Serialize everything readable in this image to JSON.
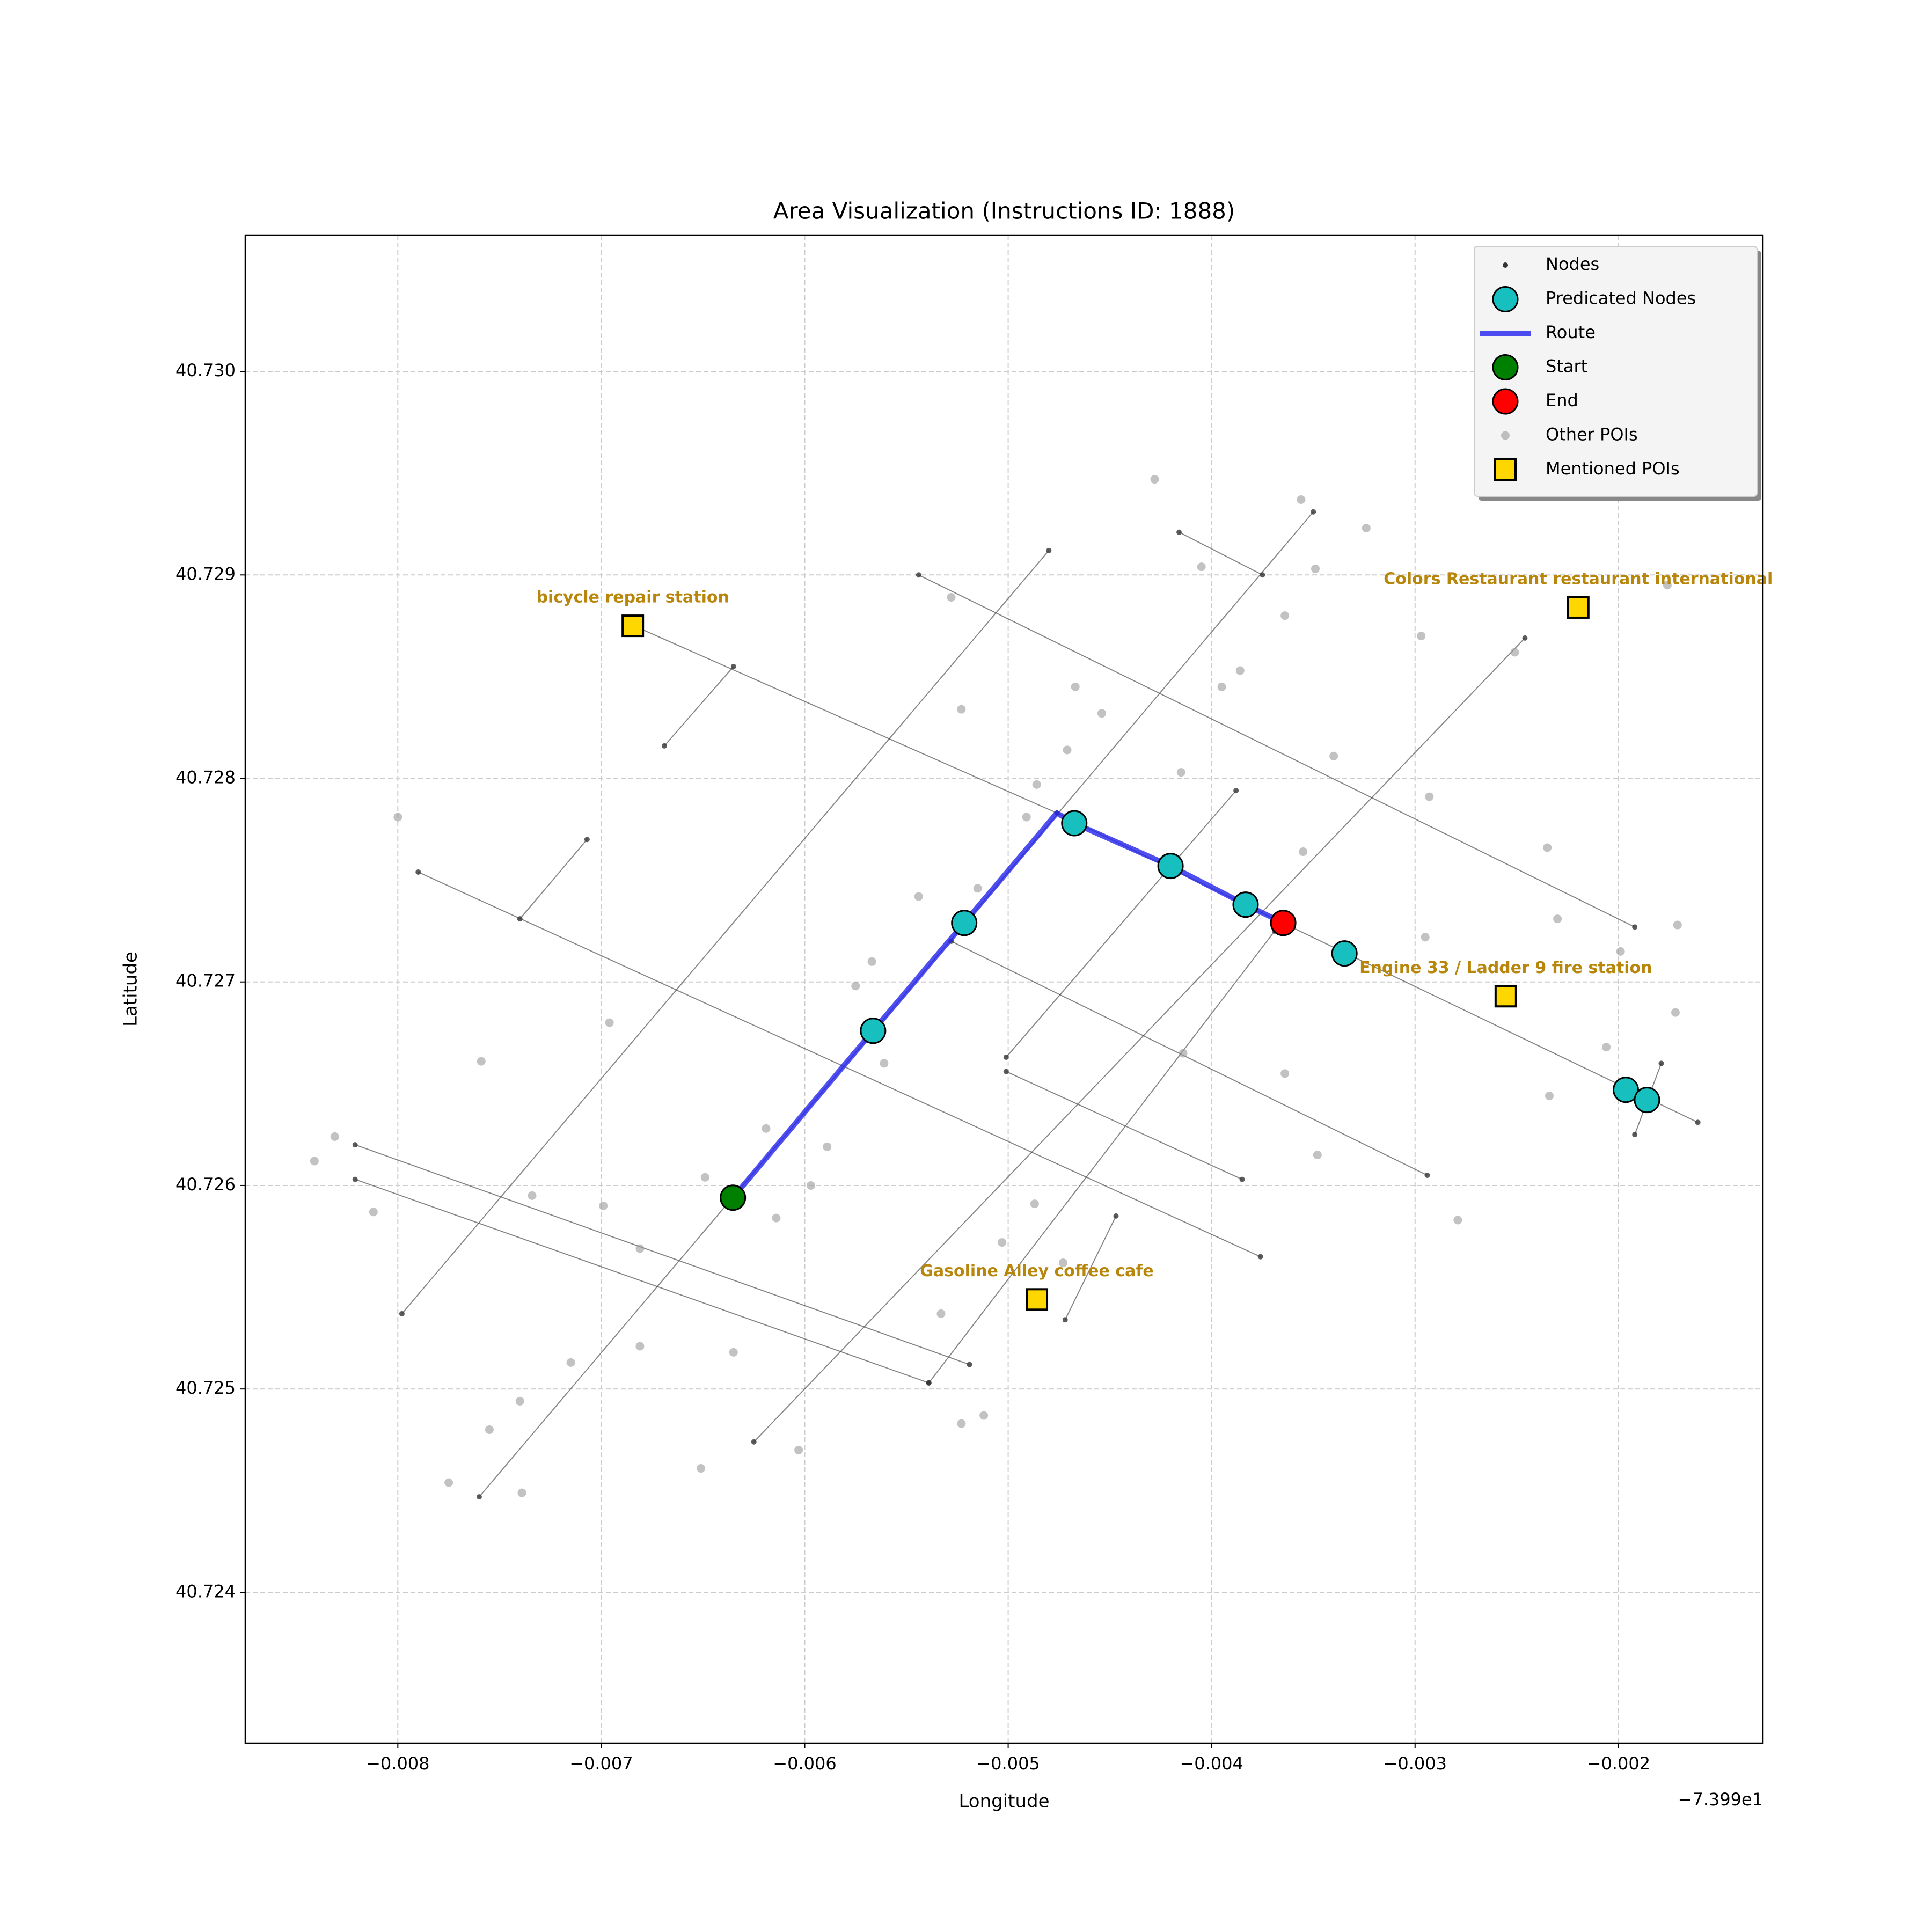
{
  "chart_data": {
    "type": "map",
    "title": "Area Visualization (Instructions ID: 1888)",
    "x_label": "Longitude",
    "y_label": "Latitude",
    "x_offset_label": "−7.399e1",
    "xlim": [
      -0.00875,
      -0.00129
    ],
    "ylim": [
      40.72326,
      40.73067
    ],
    "xticks": [
      {
        "value": -0.008,
        "label": "−0.008"
      },
      {
        "value": -0.007,
        "label": "−0.007"
      },
      {
        "value": -0.006,
        "label": "−0.006"
      },
      {
        "value": -0.005,
        "label": "−0.005"
      },
      {
        "value": -0.004,
        "label": "−0.004"
      },
      {
        "value": -0.003,
        "label": "−0.003"
      },
      {
        "value": -0.002,
        "label": "−0.002"
      }
    ],
    "yticks": [
      40.724,
      40.725,
      40.726,
      40.727,
      40.728,
      40.729,
      {
        "value": 40.73,
        "label": "40.730"
      }
    ],
    "grid": true,
    "legend": "upper right",
    "series": [
      {
        "name": "Nodes",
        "marker": "dot",
        "color": "#333333",
        "streets": [
          {
            "x": [
              -0.00798,
              -0.0048
            ],
            "y": [
              40.72537,
              40.72912
            ]
          },
          {
            "x": [
              -0.0076,
              -0.0035
            ],
            "y": [
              40.72447,
              40.72931
            ]
          },
          {
            "x": [
              -0.00625,
              -0.00246
            ],
            "y": [
              40.72474,
              40.72869
            ]
          },
          {
            "x": [
              -0.00539,
              -0.00369
            ],
            "y": [
              40.72503,
              40.72725
            ]
          },
          {
            "x": [
              -0.00472,
              -0.00447
            ],
            "y": [
              40.72534,
              40.72585
            ]
          },
          {
            "x": [
              -0.00669,
              -0.00635
            ],
            "y": [
              40.72816,
              40.72855
            ]
          },
          {
            "x": [
              -0.0074,
              -0.00707
            ],
            "y": [
              40.72731,
              40.7277
            ]
          },
          {
            "x": [
              -0.00501,
              -0.00388
            ],
            "y": [
              40.72663,
              40.72794
            ]
          },
          {
            "x": [
              -0.00684,
              -0.00476,
              -0.00365,
              -0.00161
            ],
            "y": [
              40.72875,
              40.72783,
              40.72729,
              40.72631
            ]
          },
          {
            "x": [
              -0.00544,
              -0.00192
            ],
            "y": [
              40.729,
              40.72727
            ]
          },
          {
            "x": [
              -0.00416,
              -0.00375
            ],
            "y": [
              40.72921,
              40.729
            ]
          },
          {
            "x": [
              -0.0079,
              -0.00376
            ],
            "y": [
              40.72754,
              40.72565
            ]
          },
          {
            "x": [
              -0.00528,
              -0.00294
            ],
            "y": [
              40.7272,
              40.72605
            ]
          },
          {
            "x": [
              -0.00821,
              -0.00519
            ],
            "y": [
              40.7262,
              40.72512
            ]
          },
          {
            "x": [
              -0.00821,
              -0.00539
            ],
            "y": [
              40.72603,
              40.72503
            ]
          },
          {
            "x": [
              -0.00501,
              -0.00385
            ],
            "y": [
              40.72656,
              40.72603
            ]
          },
          {
            "x": [
              -0.00192,
              -0.00179
            ],
            "y": [
              40.72625,
              40.7266
            ]
          }
        ]
      },
      {
        "name": "Predicated Nodes",
        "marker": "circle",
        "color": "#17bfbf",
        "x": [
          -0.005664,
          -0.005216,
          -0.004675,
          -0.004202,
          -0.003833,
          -0.003347,
          -0.001964,
          -0.00186
        ],
        "y": [
          40.72676,
          40.72729,
          40.72778,
          40.72757,
          40.72738,
          40.72714,
          40.72647,
          40.72642
        ]
      },
      {
        "name": "Route",
        "marker": "line",
        "color": "#2222ee",
        "x": [
          -0.006353,
          -0.005664,
          -0.005216,
          -0.004761,
          -0.004675,
          -0.004202,
          -0.003833,
          -0.003648
        ],
        "y": [
          40.72594,
          40.72676,
          40.72729,
          40.72783,
          40.72778,
          40.72757,
          40.72738,
          40.72729
        ]
      },
      {
        "name": "Start",
        "marker": "circle",
        "color": "#008000",
        "x": [
          -0.006353
        ],
        "y": [
          40.72594
        ]
      },
      {
        "name": "End",
        "marker": "circle",
        "color": "#ff0000",
        "x": [
          -0.003648
        ],
        "y": [
          40.72729
        ]
      },
      {
        "name": "Other POIs",
        "marker": "poi",
        "color": "#999999",
        "x": [
          -0.008,
          -0.00759,
          -0.00831,
          -0.00841,
          -0.00812,
          -0.00734,
          -0.00696,
          -0.00699,
          -0.00681,
          -0.00681,
          -0.00715,
          -0.0074,
          -0.00755,
          -0.00775,
          -0.00739,
          -0.00651,
          -0.00649,
          -0.00635,
          -0.00619,
          -0.00614,
          -0.00603,
          -0.00597,
          -0.00589,
          -0.00575,
          -0.00567,
          -0.00561,
          -0.00544,
          -0.00533,
          -0.00523,
          -0.00512,
          -0.00515,
          -0.00503,
          -0.00487,
          -0.00473,
          -0.00491,
          -0.00486,
          -0.00471,
          -0.00467,
          -0.00454,
          -0.00428,
          -0.00415,
          -0.00405,
          -0.00395,
          -0.00386,
          -0.00364,
          -0.00356,
          -0.00349,
          -0.00324,
          -0.00355,
          -0.00364,
          -0.00348,
          -0.0034,
          -0.00297,
          -0.00293,
          -0.00295,
          -0.00279,
          -0.00251,
          -0.00235,
          -0.0023,
          -0.00234,
          -0.00206,
          -0.00199,
          -0.00171,
          -0.00172,
          -0.00176,
          -0.00523,
          -0.00528,
          -0.00414
        ],
        "y": [
          40.72781,
          40.72661,
          40.72624,
          40.72612,
          40.72587,
          40.72595,
          40.7268,
          40.7259,
          40.72569,
          40.72521,
          40.72513,
          40.72494,
          40.7248,
          40.72454,
          40.72449,
          40.72461,
          40.72604,
          40.72518,
          40.72628,
          40.72584,
          40.7247,
          40.726,
          40.72619,
          40.72698,
          40.7271,
          40.7266,
          40.72742,
          40.72537,
          40.72483,
          40.72487,
          40.72746,
          40.72572,
          40.72591,
          40.72562,
          40.72781,
          40.72797,
          40.72814,
          40.72845,
          40.72832,
          40.72947,
          40.72803,
          40.72904,
          40.72845,
          40.72853,
          40.7288,
          40.72937,
          40.72903,
          40.72923,
          40.72764,
          40.72655,
          40.72615,
          40.72811,
          40.7287,
          40.72791,
          40.72722,
          40.72583,
          40.72862,
          40.72766,
          40.72731,
          40.72644,
          40.72668,
          40.72715,
          40.72728,
          40.72685,
          40.72895,
          40.72834,
          40.72889,
          40.72665
        ]
      },
      {
        "name": "Mentioned POIs",
        "marker": "square",
        "color": "#ffd700",
        "label_color": "#b8860b",
        "x": [
          -0.006845,
          -0.002198,
          -0.002554,
          -0.004859
        ],
        "y": [
          40.72875,
          40.72884,
          40.72693,
          40.72544
        ],
        "labels": [
          "bicycle repair station",
          "Colors Restaurant restaurant international",
          "Engine 33 / Ladder 9 fire station",
          "Gasoline Alley coffee cafe"
        ]
      }
    ]
  }
}
